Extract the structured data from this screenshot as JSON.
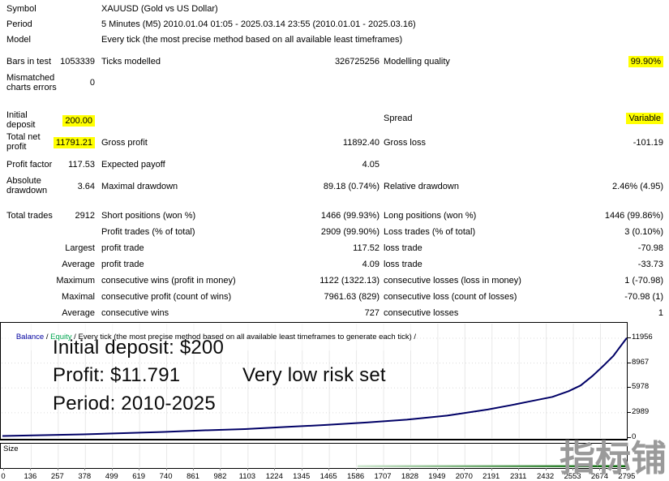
{
  "report": {
    "rows": [
      {
        "c1l": "Symbol",
        "value": "XAUUSD (Gold vs US Dollar)"
      },
      {
        "c1l": "Period",
        "value": "5 Minutes (M5) 2010.01.04 01:05 - 2025.03.14 23:55 (2010.01.01 - 2025.03.16)"
      },
      {
        "c1l": "Model",
        "value": "Every tick (the most precise method based on all available least timeframes)"
      },
      {
        "c1l": "Bars in test",
        "c1v": "1053339",
        "c2l": "Ticks modelled",
        "c2v": "326725256",
        "c3l": "Modelling quality",
        "c3v": "99.90%"
      },
      {
        "c1l": "Mismatched charts errors",
        "c1v": "0"
      },
      {
        "c1l": "Initial deposit",
        "c1v": "200.00",
        "c3l": "Spread",
        "c3v": "Variable"
      },
      {
        "c1l": "Total net profit",
        "c1v": "11791.21",
        "c2l": "Gross profit",
        "c2v": "11892.40",
        "c3l": "Gross loss",
        "c3v": "-101.19"
      },
      {
        "c1l": "Profit factor",
        "c1v": "117.53",
        "c2l": "Expected payoff",
        "c2v": "4.05"
      },
      {
        "c1l": "Absolute drawdown",
        "c1v": "3.64",
        "c2l": "Maximal drawdown",
        "c2v": "89.18 (0.74%)",
        "c3l": "Relative drawdown",
        "c3v": "2.46% (4.95)"
      },
      {
        "c1l": "Total trades",
        "c1v": "2912",
        "c2l": "Short positions (won %)",
        "c2v": "1466 (99.93%)",
        "c3l": "Long positions (won %)",
        "c3v": "1446 (99.86%)"
      },
      {
        "c2l": "Profit trades (% of total)",
        "c2v": "2909 (99.90%)",
        "c3l": "Loss trades (% of total)",
        "c3v": "3 (0.10%)"
      },
      {
        "c1v": "Largest",
        "c2l": "profit trade",
        "c2v": "117.52",
        "c3l": "loss trade",
        "c3v": "-70.98"
      },
      {
        "c1v": "Average",
        "c2l": "profit trade",
        "c2v": "4.09",
        "c3l": "loss trade",
        "c3v": "-33.73"
      },
      {
        "c1v": "Maximum",
        "c2l": "consecutive wins (profit in money)",
        "c2v": "1122 (1322.13)",
        "c3l": "consecutive losses (loss in money)",
        "c3v": "1 (-70.98)"
      },
      {
        "c1v": "Maximal",
        "c2l": "consecutive profit (count of wins)",
        "c2v": "7961.63 (829)",
        "c3l": "consecutive loss (count of losses)",
        "c3v": "-70.98 (1)"
      },
      {
        "c1v": "Average",
        "c2l": "consecutive wins",
        "c2v": "727",
        "c3l": "consecutive losses",
        "c3v": "1"
      }
    ]
  },
  "chart": {
    "header": {
      "parts": [
        "Balance",
        " / ",
        "Equity",
        " / ",
        "Every tick (the most precise method based on all available least timeframes to generate each tick)",
        " /"
      ]
    },
    "annotations": {
      "initial_deposit": "Initial deposit: $200",
      "profit": "Profit: $11.791",
      "risk": "Very low risk set",
      "period": "Period: 2010-2025"
    },
    "size_label": "Size",
    "watermark": {
      "text": "指标铺",
      "color": "#9a9a9a"
    }
  },
  "colors": {
    "highlight": "#ffff00",
    "balance_line": "#000066",
    "balance_label": "#0000a0",
    "equity_label": "#00a650",
    "grid": "#e8e8e8"
  },
  "chart_data": {
    "type": "line",
    "title": "Balance / Equity",
    "xlabel": "",
    "ylabel": "",
    "xlim": [
      0,
      2912
    ],
    "ylim": [
      0,
      12200
    ],
    "grid": true,
    "legend_position": "top-left",
    "x_ticks": [
      0,
      136,
      257,
      378,
      499,
      619,
      740,
      861,
      982,
      1103,
      1224,
      1345,
      1465,
      1586,
      1707,
      1828,
      1949,
      2070,
      2191,
      2311,
      2432,
      2553,
      2674,
      2795
    ],
    "y_ticks": [
      0,
      2989,
      5978,
      8967,
      11956
    ],
    "series": [
      {
        "name": "Balance",
        "color": "#000066",
        "points": [
          [
            0,
            200
          ],
          [
            189,
            294
          ],
          [
            377,
            392
          ],
          [
            566,
            539
          ],
          [
            754,
            686
          ],
          [
            943,
            882
          ],
          [
            1131,
            1029
          ],
          [
            1320,
            1274
          ],
          [
            1509,
            1519
          ],
          [
            1697,
            1813
          ],
          [
            1886,
            2156
          ],
          [
            2074,
            2646
          ],
          [
            2263,
            3381
          ],
          [
            2376,
            3920
          ],
          [
            2451,
            4312
          ],
          [
            2565,
            4900
          ],
          [
            2640,
            5586
          ],
          [
            2697,
            6272
          ],
          [
            2753,
            7448
          ],
          [
            2810,
            8820
          ],
          [
            2848,
            9800
          ],
          [
            2885,
            11074
          ],
          [
            2912,
            11991
          ]
        ]
      }
    ],
    "size_panel": {
      "label": "Size",
      "line_color": "#006400",
      "line_from_x_fraction": 0.57,
      "line_to_x_fraction": 1.0
    }
  }
}
